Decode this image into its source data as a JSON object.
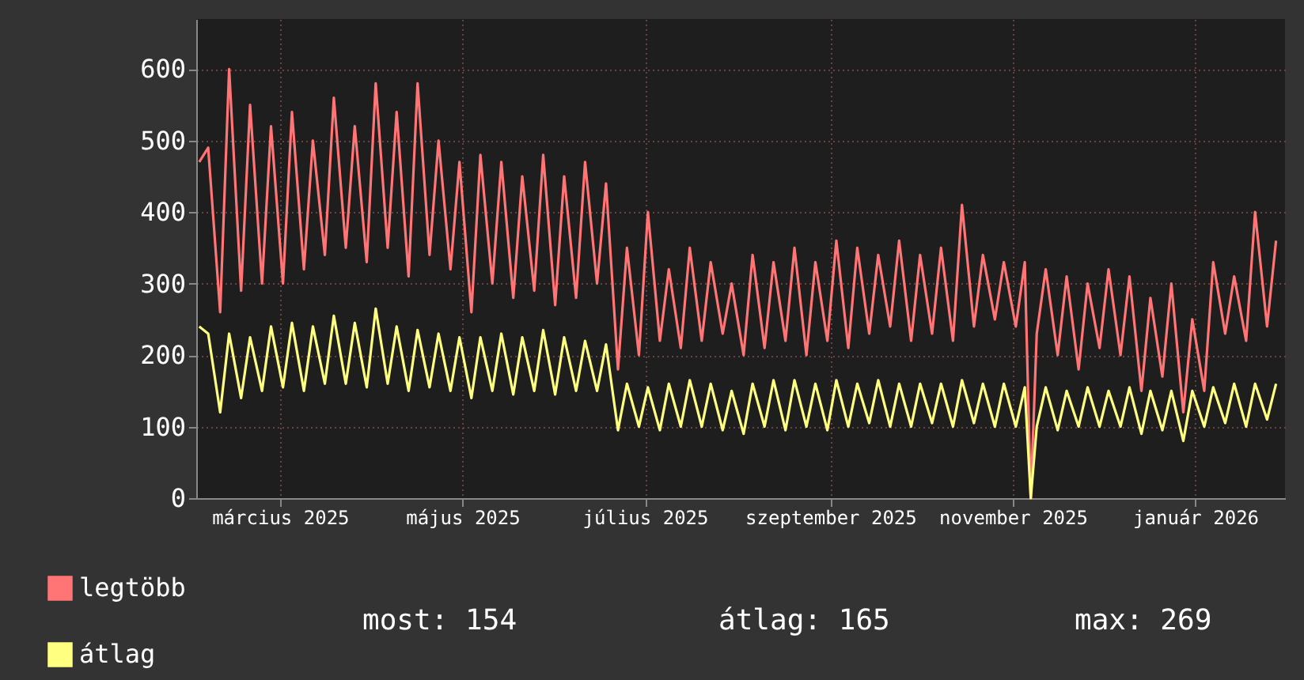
{
  "chart_data": {
    "type": "line",
    "x": [
      "2025-02-02",
      "2025-02-05",
      "2025-02-09",
      "2025-02-12",
      "2025-02-16",
      "2025-02-19",
      "2025-02-23",
      "2025-02-26",
      "2025-03-02",
      "2025-03-05",
      "2025-03-09",
      "2025-03-12",
      "2025-03-16",
      "2025-03-19",
      "2025-03-23",
      "2025-03-26",
      "2025-03-30",
      "2025-04-02",
      "2025-04-06",
      "2025-04-09",
      "2025-04-13",
      "2025-04-16",
      "2025-04-20",
      "2025-04-23",
      "2025-04-27",
      "2025-04-30",
      "2025-05-04",
      "2025-05-07",
      "2025-05-11",
      "2025-05-14",
      "2025-05-18",
      "2025-05-21",
      "2025-05-25",
      "2025-05-28",
      "2025-06-01",
      "2025-06-04",
      "2025-06-08",
      "2025-06-11",
      "2025-06-15",
      "2025-06-18",
      "2025-06-22",
      "2025-06-25",
      "2025-06-29",
      "2025-07-02",
      "2025-07-06",
      "2025-07-09",
      "2025-07-13",
      "2025-07-16",
      "2025-07-20",
      "2025-07-23",
      "2025-07-27",
      "2025-07-30",
      "2025-08-03",
      "2025-08-06",
      "2025-08-10",
      "2025-08-13",
      "2025-08-17",
      "2025-08-20",
      "2025-08-24",
      "2025-08-27",
      "2025-08-31",
      "2025-09-03",
      "2025-09-07",
      "2025-09-10",
      "2025-09-14",
      "2025-09-17",
      "2025-09-21",
      "2025-09-24",
      "2025-09-28",
      "2025-10-01",
      "2025-10-05",
      "2025-10-08",
      "2025-10-12",
      "2025-10-15",
      "2025-10-19",
      "2025-10-22",
      "2025-10-26",
      "2025-10-29",
      "2025-11-02",
      "2025-11-05",
      "2025-11-07",
      "2025-11-09",
      "2025-11-12",
      "2025-11-16",
      "2025-11-19",
      "2025-11-23",
      "2025-11-26",
      "2025-11-30",
      "2025-12-03",
      "2025-12-07",
      "2025-12-10",
      "2025-12-14",
      "2025-12-17",
      "2025-12-21",
      "2025-12-24",
      "2025-12-28",
      "2025-12-31",
      "2026-01-04",
      "2026-01-07",
      "2026-01-11",
      "2026-01-14",
      "2026-01-18",
      "2026-01-21",
      "2026-01-25",
      "2026-01-28"
    ],
    "series": [
      {
        "name": "legtöbb",
        "color": "#ff7575",
        "values": [
          470,
          490,
          260,
          600,
          290,
          550,
          300,
          520,
          300,
          540,
          320,
          500,
          340,
          560,
          350,
          520,
          330,
          580,
          350,
          540,
          310,
          580,
          340,
          500,
          320,
          470,
          260,
          480,
          300,
          470,
          280,
          450,
          290,
          480,
          270,
          450,
          280,
          470,
          300,
          440,
          180,
          350,
          200,
          400,
          220,
          320,
          210,
          350,
          220,
          330,
          230,
          300,
          200,
          340,
          210,
          330,
          220,
          350,
          200,
          330,
          220,
          360,
          210,
          350,
          230,
          340,
          240,
          360,
          220,
          340,
          230,
          350,
          220,
          410,
          240,
          340,
          250,
          330,
          240,
          330,
          0,
          230,
          320,
          200,
          310,
          180,
          300,
          210,
          320,
          200,
          310,
          150,
          280,
          170,
          300,
          120,
          250,
          150,
          330,
          230,
          310,
          220,
          400,
          240,
          360
        ]
      },
      {
        "name": "átlag",
        "color": "#ffff80",
        "values": [
          240,
          230,
          120,
          230,
          140,
          225,
          150,
          240,
          155,
          245,
          150,
          240,
          160,
          255,
          160,
          245,
          155,
          265,
          160,
          240,
          150,
          235,
          155,
          230,
          150,
          225,
          140,
          225,
          150,
          230,
          145,
          225,
          150,
          235,
          145,
          225,
          150,
          220,
          150,
          215,
          95,
          160,
          100,
          155,
          95,
          160,
          100,
          165,
          100,
          160,
          95,
          150,
          90,
          160,
          100,
          165,
          95,
          165,
          100,
          160,
          95,
          165,
          100,
          160,
          105,
          165,
          100,
          160,
          100,
          160,
          105,
          160,
          100,
          165,
          105,
          160,
          100,
          160,
          100,
          155,
          0,
          100,
          155,
          95,
          150,
          100,
          155,
          100,
          150,
          100,
          155,
          90,
          150,
          95,
          150,
          80,
          150,
          100,
          155,
          105,
          160,
          100,
          160,
          110,
          160
        ]
      }
    ],
    "xlim": [
      "2025-02-01",
      "2026-01-31"
    ],
    "xticks": [
      {
        "value": "2025-03-01",
        "label": "március 2025"
      },
      {
        "value": "2025-05-01",
        "label": "május 2025"
      },
      {
        "value": "2025-07-01",
        "label": "július 2025"
      },
      {
        "value": "2025-09-01",
        "label": "szeptember 2025"
      },
      {
        "value": "2025-11-01",
        "label": "november 2025"
      },
      {
        "value": "2026-01-01",
        "label": "január 2026"
      }
    ],
    "ylim": [
      0,
      670
    ],
    "yticks": [
      0,
      100,
      200,
      300,
      400,
      500,
      600
    ],
    "grid": true,
    "legend": "bottom left",
    "line_style": "solid",
    "annotations": [
      "most: 154",
      "átlag: 165",
      "max: 269"
    ]
  }
}
